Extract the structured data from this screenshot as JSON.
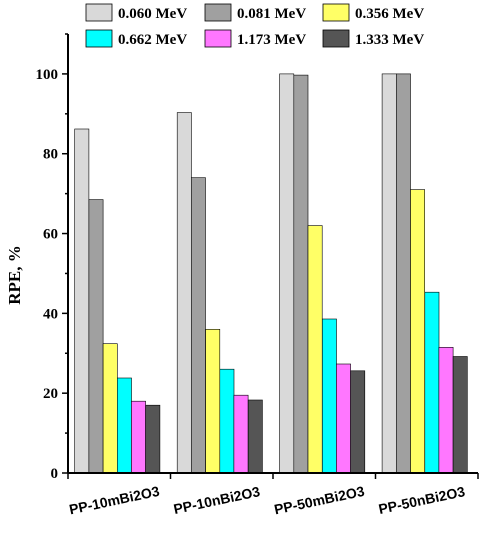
{
  "chart_data": {
    "type": "bar",
    "categories": [
      "PP-10mBi2O3",
      "PP-10nBi2O3",
      "PP-50mBi2O3",
      "PP-50nBi2O3"
    ],
    "series": [
      {
        "name": "0.060 MeV",
        "color": "#d9d9d9",
        "values": [
          86.2,
          90.3,
          100.0,
          100.0
        ]
      },
      {
        "name": "0.081 MeV",
        "color": "#a0a0a0",
        "values": [
          68.5,
          74.0,
          99.7,
          100.0
        ]
      },
      {
        "name": "0.356 MeV",
        "color": "#ffff66",
        "values": [
          32.4,
          36.0,
          62.0,
          71.0
        ]
      },
      {
        "name": "0.662 MeV",
        "color": "#00ffff",
        "values": [
          23.8,
          26.0,
          38.6,
          45.3
        ]
      },
      {
        "name": "1.173 MeV",
        "color": "#ff77ff",
        "values": [
          18.0,
          19.5,
          27.3,
          31.5
        ]
      },
      {
        "name": "1.333 MeV",
        "color": "#555555",
        "values": [
          17.0,
          18.3,
          25.6,
          29.2
        ]
      }
    ],
    "ylabel": "RPE, %",
    "xlabel": "",
    "ylim": [
      0,
      110
    ],
    "yticks": [
      0,
      20,
      40,
      60,
      80,
      100
    ],
    "grid": false,
    "legend_position": "top"
  }
}
